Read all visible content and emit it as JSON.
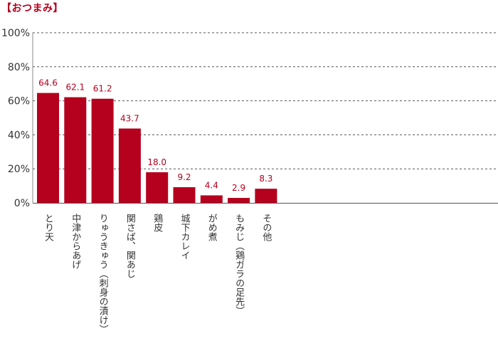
{
  "title": "【おつまみ】",
  "chart_data": {
    "type": "bar",
    "title": "【おつまみ】",
    "xlabel": "",
    "ylabel": "",
    "ylim": [
      0,
      100
    ],
    "yticks": [
      "0%",
      "20%",
      "40%",
      "60%",
      "80%",
      "100%"
    ],
    "grid": true,
    "bar_color": "#b5001e",
    "categories": [
      "とり天",
      "中津からあげ",
      "りゅうきゅう（刺身の漬け）",
      "関さば、関あじ",
      "鶏皮",
      "城下カレイ",
      "がめ煮",
      "もみじ（鶏ガラの足先）",
      "その他"
    ],
    "values": [
      64.6,
      62.1,
      61.2,
      43.7,
      18.0,
      9.2,
      4.4,
      2.9,
      8.3
    ],
    "data_labels": [
      "64.6",
      "62.1",
      "61.2",
      "43.7",
      "18.0",
      "9.2",
      "4.4",
      "2.9",
      "8.3"
    ]
  }
}
